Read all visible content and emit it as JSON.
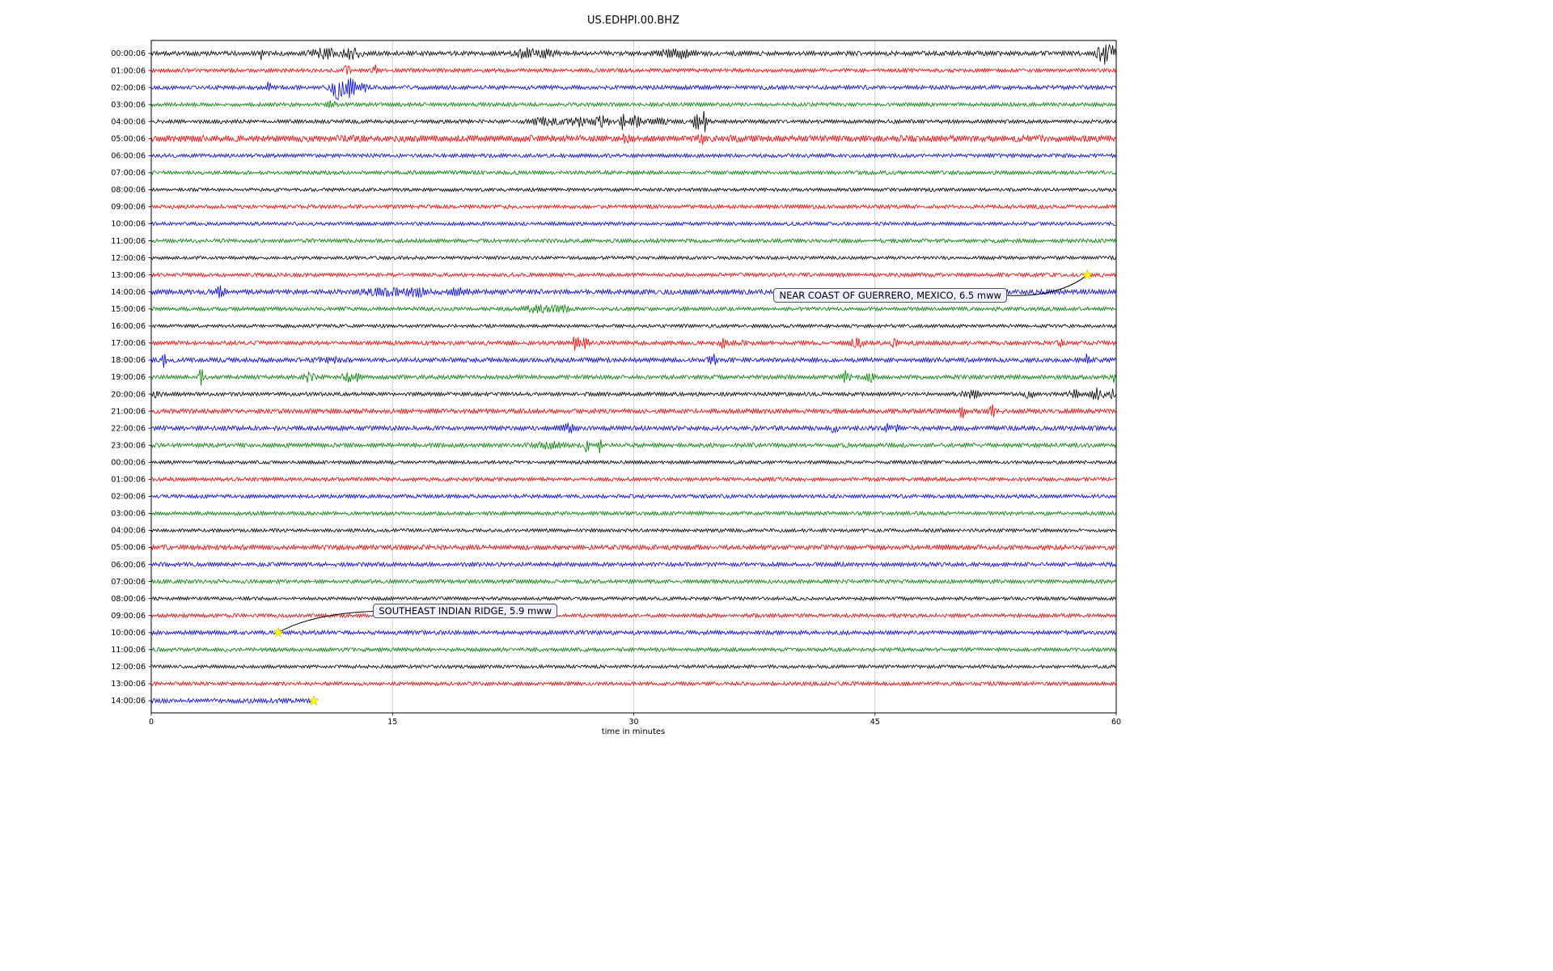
{
  "chart_data": {
    "type": "line",
    "title": "US.EDHPI.00.BHZ",
    "xlabel": "time in minutes",
    "xlim": [
      0,
      60
    ],
    "x_ticks": [
      0,
      15,
      30,
      45,
      60
    ],
    "grid": {
      "vertical_minutes": [
        15,
        30,
        45
      ],
      "color": "#cccccc"
    },
    "trace_colors": {
      "black": "#000000",
      "red": "#ff0000",
      "blue": "#0000ff",
      "green": "#008000"
    },
    "event_marker_color": "#ffff00",
    "rows": [
      {
        "label": "00:00:06",
        "color": "black",
        "noise": 1.2,
        "bursts": [
          {
            "x": 6.8,
            "a": 5,
            "w": 0.15
          },
          {
            "x": 10.8,
            "a": 3,
            "w": 1.2
          },
          {
            "x": 12.5,
            "a": 3.5,
            "w": 0.8
          },
          {
            "x": 23.3,
            "a": 3,
            "w": 0.9
          },
          {
            "x": 24.6,
            "a": 2.5,
            "w": 0.7
          },
          {
            "x": 32.8,
            "a": 3,
            "w": 1.4
          },
          {
            "x": 59.2,
            "a": 8,
            "w": 0.5
          },
          {
            "x": 59.7,
            "a": 6,
            "w": 0.3
          }
        ]
      },
      {
        "label": "01:00:06",
        "color": "red",
        "noise": 1.0,
        "bursts": [
          {
            "x": 12.2,
            "a": 4.5,
            "w": 0.25
          },
          {
            "x": 13.9,
            "a": 3.5,
            "w": 0.2
          }
        ]
      },
      {
        "label": "02:00:06",
        "color": "blue",
        "noise": 1.1,
        "bursts": [
          {
            "x": 7.3,
            "a": 3.5,
            "w": 0.2
          },
          {
            "x": 11.6,
            "a": 9,
            "w": 0.5
          },
          {
            "x": 12.4,
            "a": 7,
            "w": 0.45
          },
          {
            "x": 13.2,
            "a": 4,
            "w": 0.3
          }
        ]
      },
      {
        "label": "03:00:06",
        "color": "green",
        "noise": 1.0,
        "bursts": [
          {
            "x": 11.2,
            "a": 2,
            "w": 0.4
          }
        ]
      },
      {
        "label": "04:00:06",
        "color": "black",
        "noise": 1.0,
        "bursts": [
          {
            "x": 24.5,
            "a": 2.5,
            "w": 1.2
          },
          {
            "x": 26.5,
            "a": 3,
            "w": 0.8
          },
          {
            "x": 28,
            "a": 3.5,
            "w": 0.7
          },
          {
            "x": 29.3,
            "a": 6.5,
            "w": 0.18
          },
          {
            "x": 30.1,
            "a": 3.5,
            "w": 0.5
          },
          {
            "x": 31.5,
            "a": 2.5,
            "w": 0.8
          },
          {
            "x": 33.9,
            "a": 10,
            "w": 0.25
          },
          {
            "x": 34.4,
            "a": 8,
            "w": 0.2
          }
        ]
      },
      {
        "label": "05:00:06",
        "color": "red",
        "noise": 1.7,
        "bursts": [
          {
            "x": 29.5,
            "a": 2,
            "w": 0.4
          },
          {
            "x": 34.2,
            "a": 3,
            "w": 0.3
          }
        ]
      },
      {
        "label": "06:00:06",
        "color": "blue",
        "noise": 1.0,
        "bursts": []
      },
      {
        "label": "07:00:06",
        "color": "green",
        "noise": 1.0,
        "bursts": []
      },
      {
        "label": "08:00:06",
        "color": "black",
        "noise": 0.9,
        "bursts": []
      },
      {
        "label": "09:00:06",
        "color": "red",
        "noise": 1.0,
        "bursts": []
      },
      {
        "label": "10:00:06",
        "color": "blue",
        "noise": 0.9,
        "bursts": []
      },
      {
        "label": "11:00:06",
        "color": "green",
        "noise": 1.0,
        "bursts": []
      },
      {
        "label": "12:00:06",
        "color": "black",
        "noise": 0.9,
        "bursts": []
      },
      {
        "label": "13:00:06",
        "color": "red",
        "noise": 1.0,
        "bursts": []
      },
      {
        "label": "14:00:06",
        "color": "blue",
        "noise": 1.3,
        "bursts": [
          {
            "x": 4.3,
            "a": 3.5,
            "w": 0.4
          },
          {
            "x": 14.5,
            "a": 2.5,
            "w": 1.5
          },
          {
            "x": 16.5,
            "a": 2.5,
            "w": 1.0
          },
          {
            "x": 19,
            "a": 2,
            "w": 0.8
          }
        ]
      },
      {
        "label": "15:00:06",
        "color": "green",
        "noise": 1.0,
        "bursts": [
          {
            "x": 24,
            "a": 2,
            "w": 1.2
          },
          {
            "x": 25.5,
            "a": 2,
            "w": 0.8
          }
        ]
      },
      {
        "label": "16:00:06",
        "color": "black",
        "noise": 0.9,
        "bursts": []
      },
      {
        "label": "17:00:06",
        "color": "red",
        "noise": 1.1,
        "bursts": [
          {
            "x": 26.4,
            "a": 6,
            "w": 0.3
          },
          {
            "x": 27,
            "a": 4,
            "w": 0.25
          },
          {
            "x": 35.6,
            "a": 3.5,
            "w": 0.4
          },
          {
            "x": 36.6,
            "a": 2.5,
            "w": 0.3
          },
          {
            "x": 43.9,
            "a": 3.5,
            "w": 0.5
          },
          {
            "x": 46.2,
            "a": 3.5,
            "w": 0.25
          },
          {
            "x": 56.5,
            "a": 2,
            "w": 0.3
          }
        ]
      },
      {
        "label": "18:00:06",
        "color": "blue",
        "noise": 1.2,
        "bursts": [
          {
            "x": 0.8,
            "a": 5,
            "w": 0.15
          },
          {
            "x": 11,
            "a": 2.5,
            "w": 0.8
          },
          {
            "x": 34.6,
            "a": 7,
            "w": 0.2
          },
          {
            "x": 35,
            "a": 4,
            "w": 0.25
          },
          {
            "x": 58.2,
            "a": 4,
            "w": 0.15
          }
        ]
      },
      {
        "label": "19:00:06",
        "color": "green",
        "noise": 1.1,
        "bursts": [
          {
            "x": 3.1,
            "a": 9,
            "w": 0.12
          },
          {
            "x": 9.8,
            "a": 3.5,
            "w": 0.4
          },
          {
            "x": 12.2,
            "a": 3.5,
            "w": 0.5
          },
          {
            "x": 12.9,
            "a": 3,
            "w": 0.3
          },
          {
            "x": 43.2,
            "a": 4.5,
            "w": 0.4
          },
          {
            "x": 44.7,
            "a": 3.5,
            "w": 0.4
          },
          {
            "x": 59.9,
            "a": 4.5,
            "w": 0.15
          }
        ]
      },
      {
        "label": "20:00:06",
        "color": "black",
        "noise": 1.0,
        "bursts": [
          {
            "x": 0.4,
            "a": 3.5,
            "w": 0.25
          },
          {
            "x": 51,
            "a": 3.5,
            "w": 0.7
          },
          {
            "x": 54.6,
            "a": 2.5,
            "w": 0.4
          },
          {
            "x": 57.4,
            "a": 3,
            "w": 0.4
          },
          {
            "x": 58.8,
            "a": 4,
            "w": 0.6
          },
          {
            "x": 59.8,
            "a": 4,
            "w": 0.2
          }
        ]
      },
      {
        "label": "21:00:06",
        "color": "red",
        "noise": 1.2,
        "bursts": [
          {
            "x": 50.4,
            "a": 4.5,
            "w": 0.3
          },
          {
            "x": 52.3,
            "a": 3.5,
            "w": 0.25
          }
        ]
      },
      {
        "label": "22:00:06",
        "color": "blue",
        "noise": 1.2,
        "bursts": [
          {
            "x": 26,
            "a": 2.5,
            "w": 0.7
          },
          {
            "x": 42.5,
            "a": 2.5,
            "w": 0.4
          },
          {
            "x": 45.8,
            "a": 3.5,
            "w": 0.2
          },
          {
            "x": 46.4,
            "a": 2.5,
            "w": 0.25
          }
        ]
      },
      {
        "label": "23:00:06",
        "color": "green",
        "noise": 1.1,
        "bursts": [
          {
            "x": 24.8,
            "a": 2,
            "w": 1.2
          },
          {
            "x": 27.1,
            "a": 5.5,
            "w": 0.15
          },
          {
            "x": 27.9,
            "a": 5,
            "w": 0.18
          }
        ]
      },
      {
        "label": "00:00:06",
        "color": "black",
        "noise": 0.9,
        "bursts": []
      },
      {
        "label": "01:00:06",
        "color": "red",
        "noise": 1.0,
        "bursts": []
      },
      {
        "label": "02:00:06",
        "color": "blue",
        "noise": 1.0,
        "bursts": []
      },
      {
        "label": "03:00:06",
        "color": "green",
        "noise": 1.0,
        "bursts": []
      },
      {
        "label": "04:00:06",
        "color": "black",
        "noise": 0.9,
        "bursts": []
      },
      {
        "label": "05:00:06",
        "color": "red",
        "noise": 1.3,
        "bursts": []
      },
      {
        "label": "06:00:06",
        "color": "blue",
        "noise": 1.1,
        "bursts": []
      },
      {
        "label": "07:00:06",
        "color": "green",
        "noise": 1.0,
        "bursts": []
      },
      {
        "label": "08:00:06",
        "color": "black",
        "noise": 0.9,
        "bursts": []
      },
      {
        "label": "09:00:06",
        "color": "red",
        "noise": 1.0,
        "bursts": []
      },
      {
        "label": "10:00:06",
        "color": "blue",
        "noise": 1.1,
        "bursts": []
      },
      {
        "label": "11:00:06",
        "color": "green",
        "noise": 1.0,
        "bursts": []
      },
      {
        "label": "12:00:06",
        "color": "black",
        "noise": 0.9,
        "bursts": []
      },
      {
        "label": "13:00:06",
        "color": "red",
        "noise": 1.0,
        "bursts": []
      },
      {
        "label": "14:00:06",
        "color": "blue",
        "noise": 1.2,
        "extent": [
          0,
          10.2
        ],
        "bursts": []
      }
    ],
    "annotations": [
      {
        "text": "NEAR COAST OF GUERRERO, MEXICO, 6.5 mww",
        "star": {
          "row_index": 13,
          "minute": 58.2
        },
        "box": {
          "left_minute": 38.7,
          "row_offset": 1.2
        }
      },
      {
        "text": "SOUTHEAST INDIAN RIDGE, 5.9 mww",
        "star": {
          "row_index": 34,
          "minute": 7.9
        },
        "box": {
          "left_minute": 13.8,
          "row_offset": -1.25
        }
      }
    ],
    "extra_stars": [
      {
        "row_index": 38,
        "minute": 10.1
      }
    ]
  }
}
